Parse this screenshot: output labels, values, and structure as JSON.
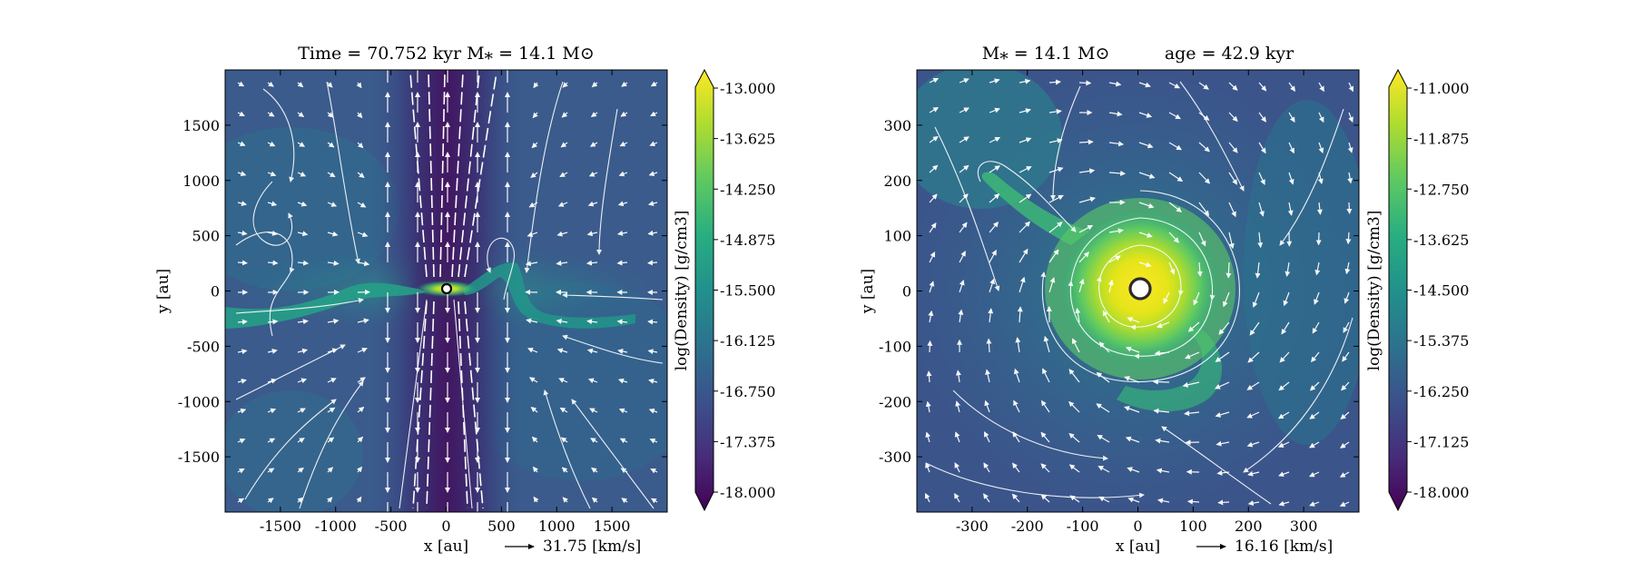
{
  "chart_data": [
    {
      "type": "heatmap",
      "title": "Time = 70.752 kyr    M⁎ = 14.1 M⊙",
      "xlabel": "x [au]",
      "ylabel": "y [au]",
      "xlim": [
        -2000,
        2000
      ],
      "ylim": [
        -2000,
        2000
      ],
      "xticks": [
        -1500,
        -1000,
        -500,
        0,
        500,
        1000,
        1500
      ],
      "xtick_labels": [
        "-1500",
        "-1000",
        "-500",
        "0",
        "500",
        "1000",
        "1500"
      ],
      "yticks": [
        -1500,
        -1000,
        -500,
        0,
        500,
        1000,
        1500
      ],
      "ytick_labels": [
        "-1500",
        "-1000",
        "-500",
        "0",
        "500",
        "1000",
        "1500"
      ],
      "velocity_key": "31.75 [km/s]",
      "colorbar": {
        "label": "log(Density) [g/cm3]",
        "range": [
          -18.0,
          -13.0
        ],
        "ticks": [
          "-13.000",
          "-13.625",
          "-14.250",
          "-14.875",
          "-15.500",
          "-16.125",
          "-16.750",
          "-17.375",
          "-18.000"
        ],
        "colormap": "viridis"
      },
      "features": {
        "structure": "outflow cavity along the vertical axis, dense filamentary disk along the horizontal axis",
        "star_position": [
          0,
          0
        ]
      }
    },
    {
      "type": "heatmap",
      "title": "M⁎ = 14.1 M⊙          age = 42.9 kyr",
      "xlabel": "x [au]",
      "ylabel": "y [au]",
      "xlim": [
        -400,
        400
      ],
      "ylim": [
        -400,
        400
      ],
      "xticks": [
        -300,
        -200,
        -100,
        0,
        100,
        200,
        300
      ],
      "xtick_labels": [
        "-300",
        "-200",
        "-100",
        "0",
        "100",
        "200",
        "300"
      ],
      "yticks": [
        -300,
        -200,
        -100,
        0,
        100,
        200,
        300
      ],
      "ytick_labels": [
        "-300",
        "-200",
        "-100",
        "0",
        "100",
        "200",
        "300"
      ],
      "velocity_key": "16.16 [km/s]",
      "colorbar": {
        "label": "log(Density) [g/cm3]",
        "range": [
          -18.0,
          -11.0
        ],
        "ticks": [
          "-11.000",
          "-11.875",
          "-12.750",
          "-13.625",
          "-14.500",
          "-15.375",
          "-16.250",
          "-17.125",
          "-18.000"
        ],
        "colormap": "viridis"
      },
      "features": {
        "structure": "face-on rotating disk with spiral arm towards the upper left",
        "star_position": [
          0,
          0
        ]
      }
    }
  ]
}
